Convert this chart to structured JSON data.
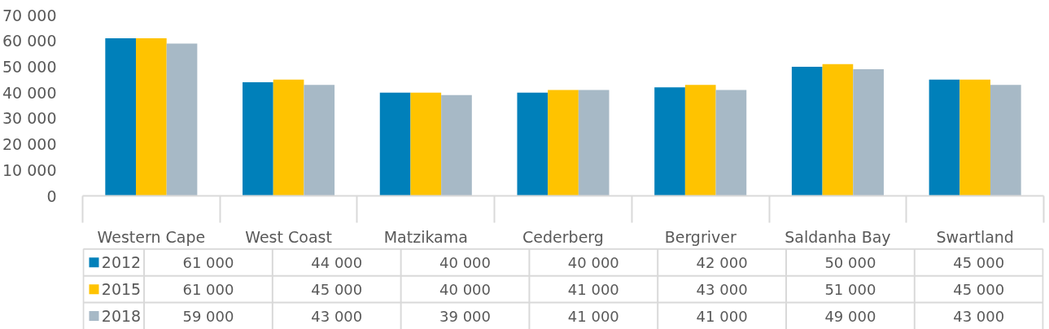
{
  "chart_data": {
    "type": "bar",
    "categories": [
      "Western Cape",
      "West Coast",
      "Matzikama",
      "Cederberg",
      "Bergriver",
      "Saldanha Bay",
      "Swartland"
    ],
    "series": [
      {
        "name": "2012",
        "color": "#0080ba",
        "values": [
          61000,
          44000,
          40000,
          40000,
          42000,
          50000,
          45000
        ]
      },
      {
        "name": "2015",
        "color": "#ffc300",
        "values": [
          61000,
          45000,
          40000,
          41000,
          43000,
          51000,
          45000
        ]
      },
      {
        "name": "2018",
        "color": "#a7b9c6",
        "values": [
          59000,
          43000,
          39000,
          41000,
          41000,
          49000,
          43000
        ]
      }
    ],
    "ylim": [
      0,
      70000
    ],
    "yticks": [
      0,
      {
        "value": 10000,
        "label": "10 000"
      },
      {
        "value": 20000,
        "label": "20 000"
      },
      {
        "value": 30000,
        "label": "30 000"
      },
      {
        "value": 40000,
        "label": "40 000"
      },
      {
        "value": 50000,
        "label": "50 000"
      },
      {
        "value": 60000,
        "label": "60 000"
      },
      {
        "value": 70000,
        "label": "70 000"
      }
    ],
    "data_labels": true,
    "legend": "bottom left"
  }
}
